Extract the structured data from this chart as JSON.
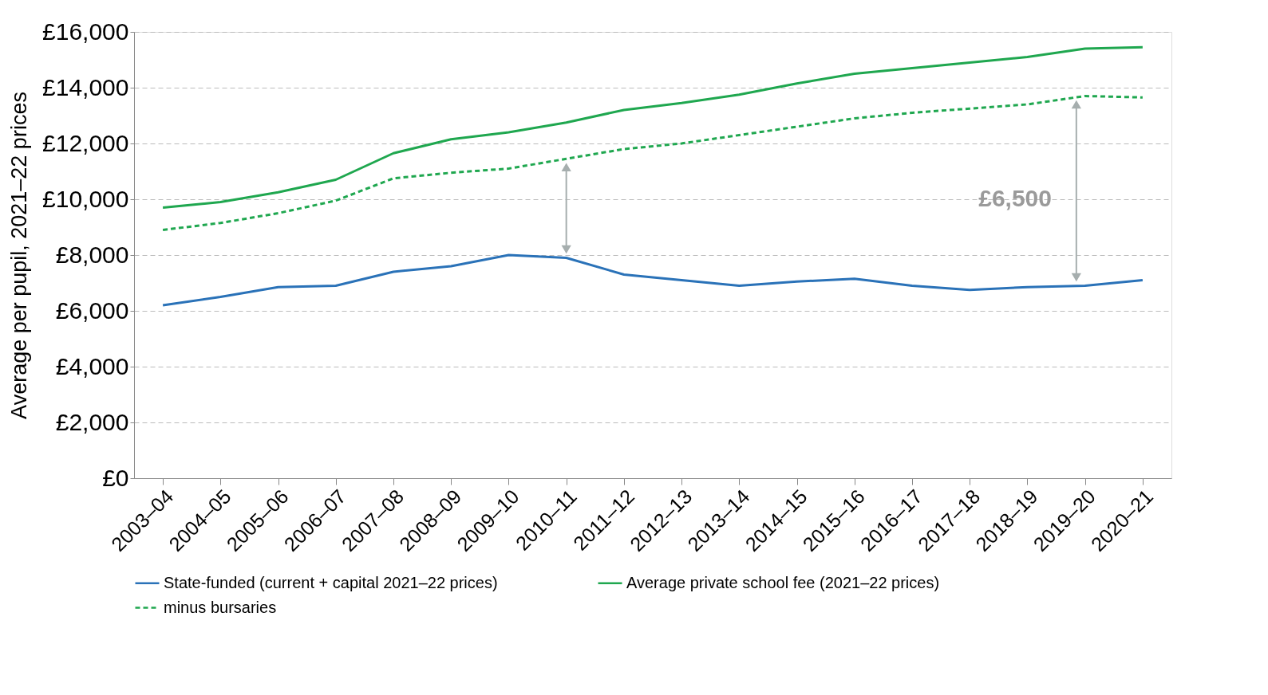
{
  "chart_data": {
    "type": "line",
    "ylabel": "Average per pupil, 2021–22 prices",
    "categories": [
      "2003–04",
      "2004–05",
      "2005–06",
      "2006–07",
      "2007–08",
      "2008–09",
      "2009–10",
      "2010–11",
      "2011–12",
      "2012–13",
      "2013–14",
      "2014–15",
      "2015–16",
      "2016–17",
      "2017–18",
      "2018–19",
      "2019–20",
      "2020–21"
    ],
    "series": [
      {
        "name": "State-funded (current + capital 2021–22 prices)",
        "color": "#2a72b8",
        "line_style": "solid",
        "values": [
          6200,
          6500,
          6850,
          6900,
          7400,
          7600,
          8000,
          7900,
          7300,
          7100,
          6900,
          7050,
          7150,
          6900,
          6750,
          6850,
          6900,
          7100
        ]
      },
      {
        "name": "Average private school fee (2021–22 prices)",
        "color": "#1fa74f",
        "line_style": "solid",
        "values": [
          9700,
          9900,
          10250,
          10700,
          11650,
          12150,
          12400,
          12750,
          13200,
          13450,
          13750,
          14150,
          14500,
          14700,
          14900,
          15100,
          15400,
          15450
        ]
      },
      {
        "name": "minus bursaries",
        "color": "#1fa74f",
        "line_style": "dashed",
        "values": [
          8900,
          9150,
          9500,
          9950,
          10750,
          10950,
          11100,
          11450,
          11800,
          12000,
          12300,
          12600,
          12900,
          13100,
          13250,
          13400,
          13700,
          13650
        ]
      }
    ],
    "ylim": [
      0,
      16000
    ],
    "yticks": [
      {
        "value": 0,
        "label": "£0"
      },
      {
        "value": 2000,
        "label": "£2,000"
      },
      {
        "value": 4000,
        "label": "£4,000"
      },
      {
        "value": 6000,
        "label": "£6,000"
      },
      {
        "value": 8000,
        "label": "£8,000"
      },
      {
        "value": 10000,
        "label": "£10,000"
      },
      {
        "value": 12000,
        "label": "£12,000"
      },
      {
        "value": 14000,
        "label": "£14,000"
      },
      {
        "value": 16000,
        "label": "£16,000"
      }
    ],
    "grid": "y",
    "legend": "bottom",
    "marker": "none",
    "annotations": [
      "£6,500"
    ]
  }
}
